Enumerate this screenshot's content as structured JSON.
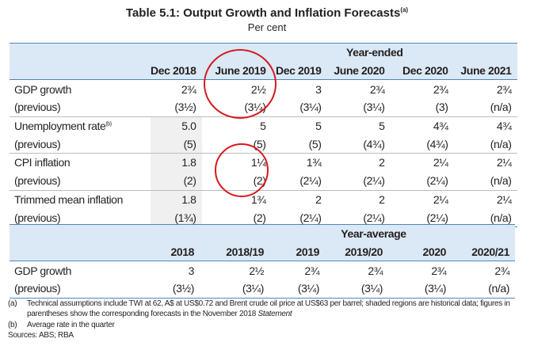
{
  "title": "Table 5.1: Output Growth and Inflation Forecasts",
  "title_note": "(a)",
  "subtitle": "Per cent",
  "year_ended": {
    "group_label": "Year-ended",
    "columns": [
      "Dec 2018",
      "June 2019",
      "Dec 2019",
      "June 2020",
      "Dec 2020",
      "June 2021"
    ],
    "rows": [
      {
        "label": "GDP growth",
        "note": "",
        "values": [
          "2¾",
          "2½",
          "3",
          "2¾",
          "2¾",
          "2¾"
        ],
        "prev_label": "(previous)",
        "previous": [
          "(3½)",
          "(3¼)",
          "(3¼)",
          "(3¼)",
          "(3)",
          "(n/a)"
        ]
      },
      {
        "label": "Unemployment rate",
        "note": "(b)",
        "values": [
          "5.0",
          "5",
          "5",
          "5",
          "4¾",
          "4¾"
        ],
        "prev_label": "(previous)",
        "previous": [
          "(5)",
          "(5)",
          "(5)",
          "(4¾)",
          "(4¾)",
          "(n/a)"
        ]
      },
      {
        "label": "CPI inflation",
        "note": "",
        "values": [
          "1.8",
          "1¼",
          "1¾",
          "2",
          "2¼",
          "2¼"
        ],
        "prev_label": "(previous)",
        "previous": [
          "(2)",
          "(2)",
          "(2¼)",
          "(2¼)",
          "(2¼)",
          "(n/a)"
        ]
      },
      {
        "label": "Trimmed mean inflation",
        "note": "",
        "values": [
          "1.8",
          "1¾",
          "2",
          "2",
          "2¼",
          "2¼"
        ],
        "prev_label": "(previous)",
        "previous": [
          "(1¾)",
          "(2)",
          "(2¼)",
          "(2¼)",
          "(2¼)",
          "(n/a)"
        ]
      }
    ]
  },
  "year_average": {
    "group_label": "Year-average",
    "columns": [
      "2018",
      "2018/19",
      "2019",
      "2019/20",
      "2020",
      "2020/21"
    ],
    "rows": [
      {
        "label": "GDP growth",
        "values": [
          "3",
          "2½",
          "2¾",
          "2¾",
          "2¾",
          "2¾"
        ],
        "prev_label": "(previous)",
        "previous": [
          "(3½)",
          "(3¼)",
          "(3¼)",
          "(3¼)",
          "(3¼)",
          "(n/a)"
        ]
      }
    ]
  },
  "footnotes": {
    "a_mark": "(a)",
    "a_text": "Technical assumptions include  TWI at 62, A$ at US$0.72 and Brent crude oil price at US$63 per barrel; shaded regions are historical data; figures in parentheses show the corresponding forecasts in the November 2018 ",
    "a_italic": "Statement",
    "b_mark": "(b)",
    "b_text": "Average rate in the quarter",
    "sources": "Sources: ABS; RBA"
  },
  "annotation_color": "#d7191f",
  "header_bg": "#dbe9f6",
  "rule_color": "#4f86b8"
}
